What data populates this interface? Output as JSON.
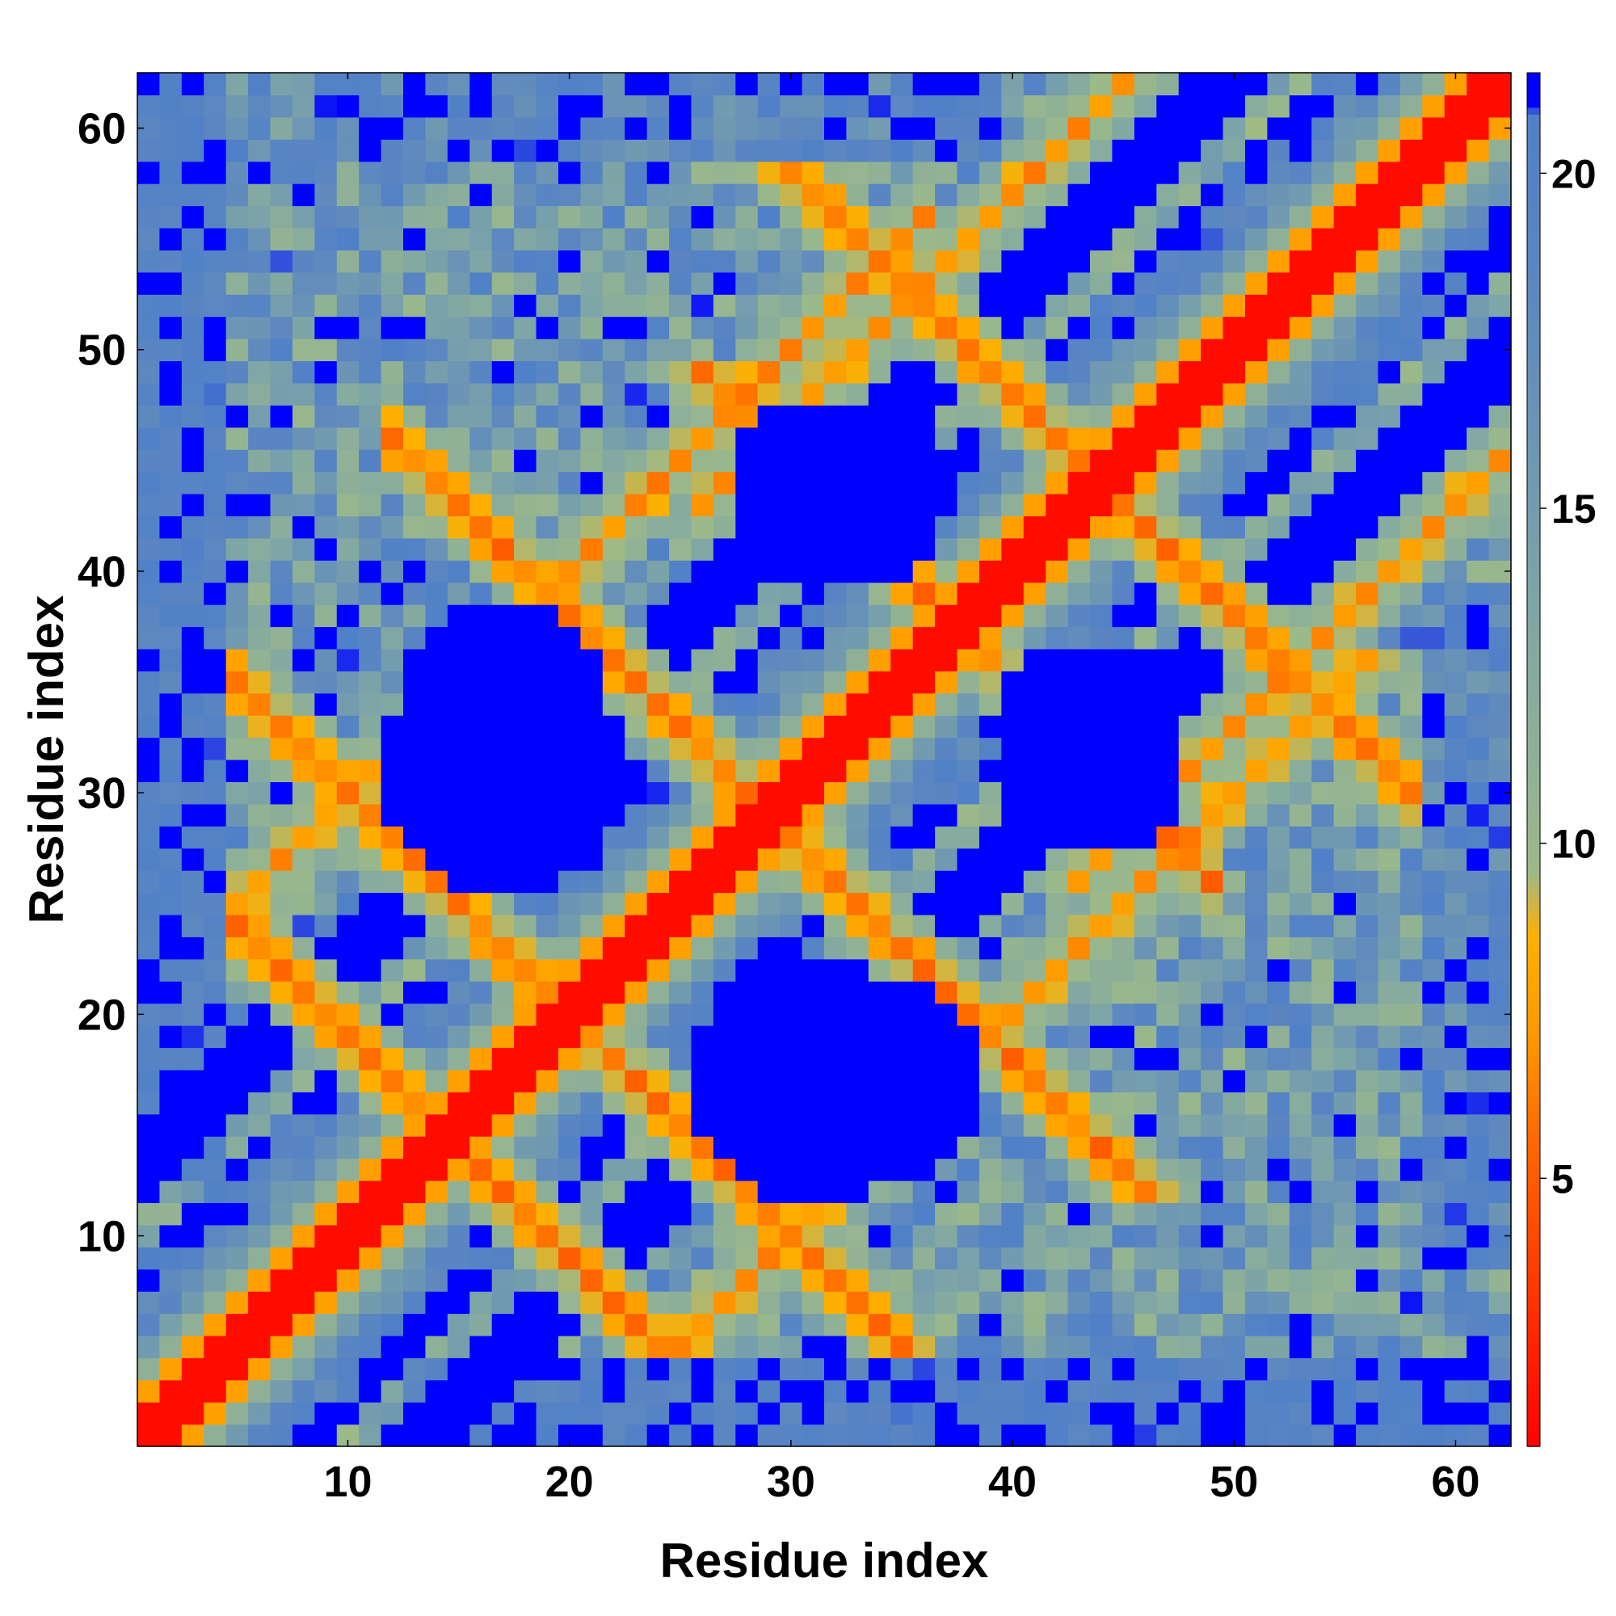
{
  "chart_data": {
    "type": "heatmap",
    "title": "",
    "xlabel": "Residue index",
    "ylabel": "Residue index",
    "n_residues": 62,
    "xlim": [
      0.5,
      62.5
    ],
    "ylim": [
      0.5,
      62.5
    ],
    "x_ticks": [
      10,
      20,
      30,
      40,
      50,
      60
    ],
    "y_ticks": [
      10,
      20,
      30,
      40,
      50,
      60
    ],
    "x_tick_labels": [
      "10",
      "20",
      "30",
      "40",
      "50",
      "60"
    ],
    "y_tick_labels": [
      "10",
      "20",
      "30",
      "40",
      "50",
      "60"
    ],
    "colorbar": {
      "range": [
        1,
        21.5
      ],
      "ticks": [
        5,
        10,
        15,
        20
      ],
      "tick_labels": [
        "5",
        "10",
        "15",
        "20"
      ],
      "stops": [
        {
          "value": 1,
          "color": "#ff0000"
        },
        {
          "value": 3.5,
          "color": "#ff3a00"
        },
        {
          "value": 5.5,
          "color": "#ff6600"
        },
        {
          "value": 7.2,
          "color": "#ff9900"
        },
        {
          "value": 8.6,
          "color": "#ffb000"
        },
        {
          "value": 9.6,
          "color": "#9cb98a"
        },
        {
          "value": 13.5,
          "color": "#7fa6a6"
        },
        {
          "value": 18.5,
          "color": "#5b86c1"
        },
        {
          "value": 20.9,
          "color": "#5080c8"
        },
        {
          "value": 21.0,
          "color": "#0000ff"
        },
        {
          "value": 21.5,
          "color": "#0000ff"
        }
      ]
    },
    "values_description_note": "",
    "secondary_contacts": {
      "hairpin_bands": [
        {
          "from": [
            3,
            26
          ],
          "to": [
            14,
            14
          ],
          "note": ""
        }
      ]
    },
    "grid": false,
    "legend": "colorbar-right"
  }
}
